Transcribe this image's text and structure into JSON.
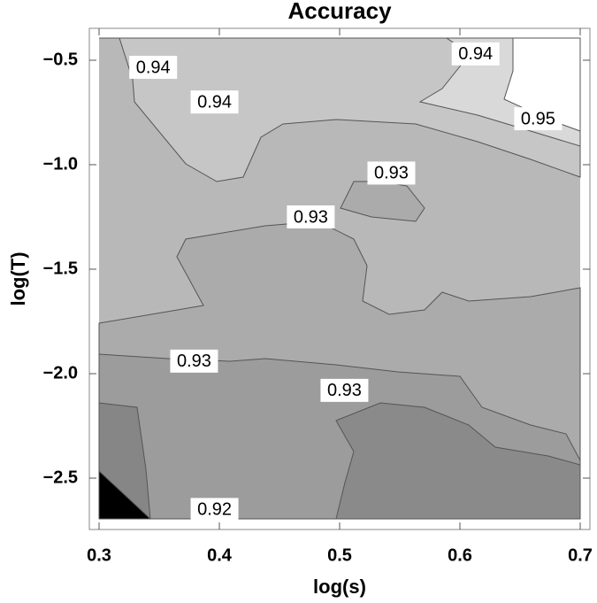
{
  "chart_data": {
    "type": "contour",
    "title": "Accuracy",
    "x_label": "log(s)",
    "y_label": "log(T)",
    "xlim": [
      0.3,
      0.7
    ],
    "ylim": [
      -2.695,
      -0.394
    ],
    "xticks": [
      0.3,
      0.4,
      0.5,
      0.6,
      0.7
    ],
    "yticks": [
      {
        "value": -0.5,
        "label": "−0.5"
      },
      {
        "value": -1.0,
        "label": "−1.0"
      },
      {
        "value": -1.5,
        "label": "−1.5"
      },
      {
        "value": -2.0,
        "label": "−2.0"
      },
      {
        "value": -2.5,
        "label": "−2.5"
      }
    ],
    "contour_labels": [
      {
        "level": 0.94,
        "x": 0.345,
        "y": -0.534
      },
      {
        "level": 0.94,
        "x": 0.396,
        "y": -0.7
      },
      {
        "level": 0.94,
        "x": 0.613,
        "y": -0.47
      },
      {
        "level": 0.95,
        "x": 0.665,
        "y": -0.78
      },
      {
        "level": 0.93,
        "x": 0.543,
        "y": -1.04
      },
      {
        "level": 0.93,
        "x": 0.476,
        "y": -1.25
      },
      {
        "level": 0.93,
        "x": 0.379,
        "y": -1.94
      },
      {
        "level": 0.93,
        "x": 0.504,
        "y": -2.08
      },
      {
        "level": 0.92,
        "x": 0.396,
        "y": -2.65
      }
    ]
  }
}
